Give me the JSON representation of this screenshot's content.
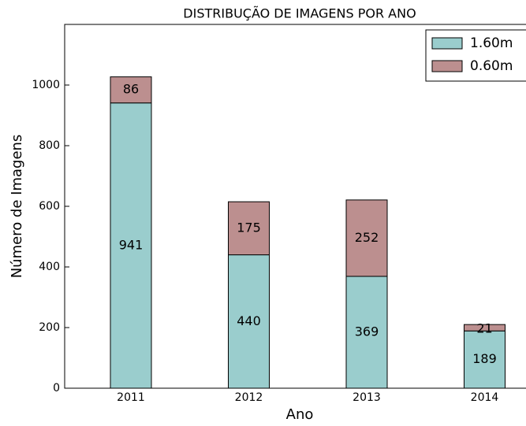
{
  "chart_data": {
    "type": "stacked_bar",
    "title": "DISTRIBUÇÃO DE IMAGENS POR ANO",
    "x_label": "Ano",
    "y_label": "Número de Imagens",
    "categories": [
      "2011",
      "2012",
      "2013",
      "2014"
    ],
    "series": [
      {
        "name": "1.60m",
        "color": "#9acdcd",
        "values": [
          941,
          440,
          369,
          189
        ]
      },
      {
        "name": "0.60m",
        "color": "#bc8f8f",
        "values": [
          86,
          175,
          252,
          21
        ]
      }
    ],
    "ylim": [
      0,
      1200
    ],
    "yticks": [
      0,
      200,
      400,
      600,
      800,
      1000
    ],
    "legend": "upper right"
  }
}
